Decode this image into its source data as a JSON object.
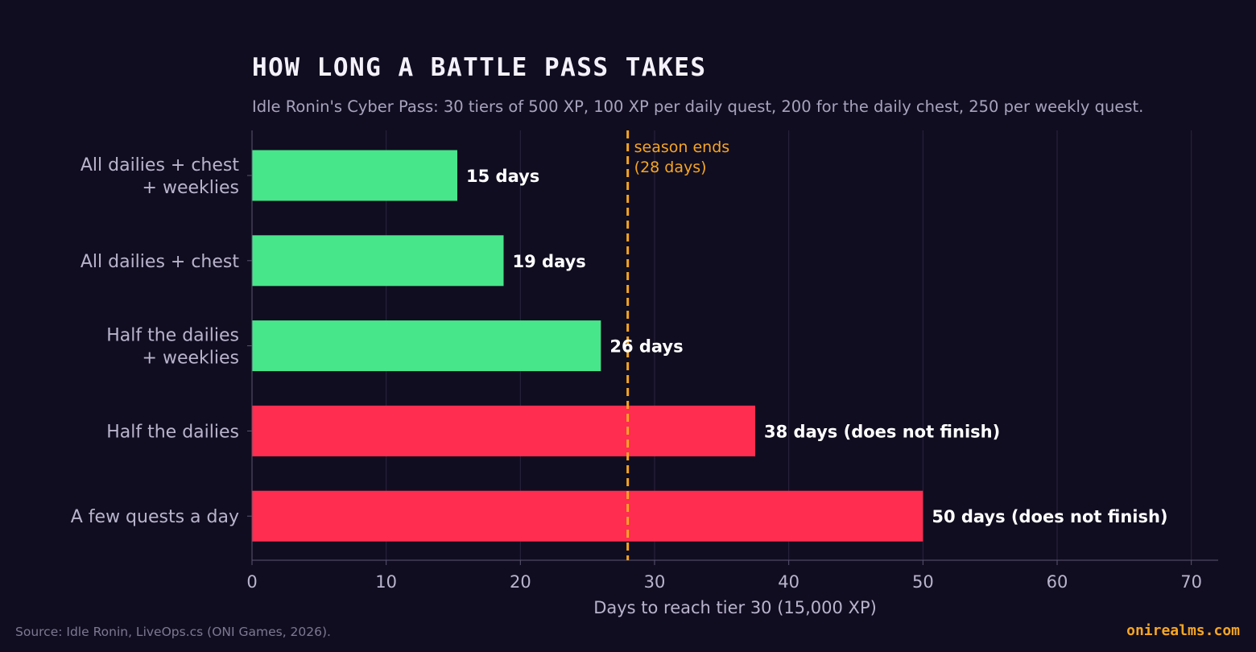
{
  "header": {
    "title": "HOW LONG A BATTLE PASS TAKES",
    "subtitle": "Idle Ronin's Cyber Pass: 30 tiers of 500 XP, 100 XP per daily quest, 200 for the daily chest, 250 per weekly quest."
  },
  "footer": {
    "source": "Source: Idle Ronin, LiveOps.cs (ONI Games, 2026).",
    "brand": "onirealms.com"
  },
  "chart_data": {
    "type": "bar",
    "orientation": "horizontal",
    "categories": [
      [
        "All dailies + chest",
        "+ weeklies"
      ],
      [
        "All dailies + chest"
      ],
      [
        "Half the dailies",
        "+ weeklies"
      ],
      [
        "Half the dailies"
      ],
      [
        "A few quests a day"
      ]
    ],
    "values": [
      15.3,
      18.75,
      26,
      37.5,
      50
    ],
    "data_labels": [
      "15 days",
      "19 days",
      "26 days",
      "38 days  (does not finish)",
      "50 days  (does not finish)"
    ],
    "finishes": [
      true,
      true,
      true,
      false,
      false
    ],
    "colors": {
      "finish": "#47e68a",
      "no_finish": "#ff2d4f",
      "marker": "#f5a623"
    },
    "xlabel": "Days to reach tier 30 (15,000 XP)",
    "xlim": [
      0,
      72
    ],
    "xticks": [
      0,
      10,
      20,
      30,
      40,
      50,
      60,
      70
    ],
    "grid": true,
    "reference_line": {
      "x": 28,
      "label": [
        "season ends",
        "(28 days)"
      ]
    }
  }
}
